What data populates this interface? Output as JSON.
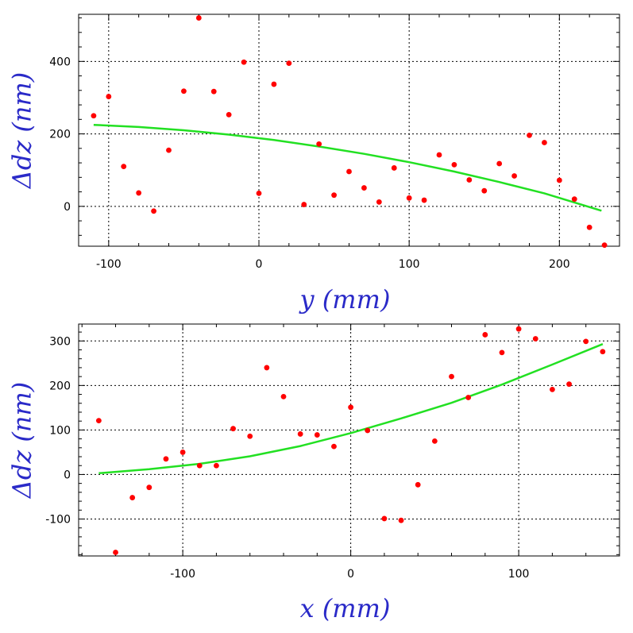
{
  "chart_data": [
    {
      "type": "scatter",
      "xlabel": "y (mm)",
      "ylabel": "Δdz (nm)",
      "xlim": [
        -120,
        240
      ],
      "ylim": [
        -110,
        530
      ],
      "xticks": [
        -100,
        0,
        100,
        200
      ],
      "yticks": [
        0,
        200,
        400
      ],
      "grid": true,
      "series": [
        {
          "kind": "points",
          "color": "#ff0000",
          "x": [
            -110,
            -100,
            -90,
            -80,
            -70,
            -60,
            -50,
            -40,
            -30,
            -20,
            -10,
            0,
            10,
            20,
            30,
            40,
            50,
            60,
            70,
            80,
            90,
            100,
            110,
            120,
            130,
            140,
            150,
            160,
            170,
            180,
            190,
            200,
            210,
            220,
            230
          ],
          "y": [
            250,
            303,
            110,
            37,
            -13,
            155,
            318,
            520,
            317,
            253,
            398,
            36,
            337,
            395,
            5,
            172,
            31,
            96,
            51,
            12,
            106,
            23,
            17,
            142,
            115,
            73,
            43,
            118,
            84,
            196,
            176,
            72,
            20,
            -58,
            -107
          ]
        },
        {
          "kind": "fit",
          "color": "#22e022",
          "x": [
            -110,
            -80,
            -50,
            -20,
            10,
            40,
            70,
            100,
            130,
            160,
            190,
            228
          ],
          "y": [
            225,
            219,
            210,
            198,
            183,
            165,
            145,
            122,
            96,
            67,
            36,
            -12
          ]
        }
      ]
    },
    {
      "type": "scatter",
      "xlabel": "x (mm)",
      "ylabel": "Δdz (nm)",
      "xlim": [
        -162,
        160
      ],
      "ylim": [
        -183,
        338
      ],
      "xticks": [
        -100,
        0,
        100
      ],
      "yticks": [
        -100,
        0,
        100,
        200,
        300
      ],
      "grid": true,
      "series": [
        {
          "kind": "points",
          "color": "#ff0000",
          "x": [
            -150,
            -140,
            -130,
            -120,
            -110,
            -100,
            -90,
            -80,
            -70,
            -60,
            -50,
            -40,
            -30,
            -20,
            -10,
            0,
            10,
            20,
            30,
            40,
            50,
            60,
            70,
            80,
            90,
            100,
            110,
            120,
            130,
            140,
            150
          ],
          "y": [
            121,
            -175,
            -52,
            -29,
            35,
            50,
            20,
            20,
            103,
            86,
            240,
            175,
            91,
            89,
            63,
            151,
            99,
            -99,
            -103,
            -23,
            75,
            220,
            173,
            314,
            274,
            327,
            305,
            191,
            203,
            299,
            276
          ]
        },
        {
          "kind": "fit",
          "color": "#22e022",
          "x": [
            -150,
            -120,
            -90,
            -60,
            -30,
            0,
            30,
            60,
            90,
            120,
            150
          ],
          "y": [
            3,
            12,
            24,
            41,
            64,
            93,
            126,
            161,
            202,
            247,
            293
          ]
        }
      ]
    }
  ]
}
